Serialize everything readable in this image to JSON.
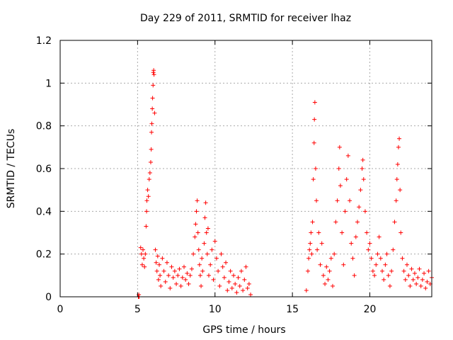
{
  "chart_data": {
    "type": "scatter",
    "title": "Day 229 of 2011, SRMTID for receiver lhaz",
    "xlabel": "GPS time / hours",
    "ylabel": "SRMTID / TECUs",
    "xlim": [
      0,
      24
    ],
    "ylim": [
      0,
      1.2
    ],
    "x_ticks": [
      0,
      5,
      10,
      15,
      20
    ],
    "x_tick_labels": [
      "0",
      "5",
      "10",
      "15",
      "20"
    ],
    "y_ticks": [
      0,
      0.2,
      0.4,
      0.6,
      0.8,
      1.0,
      1.2
    ],
    "y_tick_labels": [
      "0",
      "0.2",
      "0.4",
      "0.6",
      "0.8",
      "1",
      "1.2"
    ],
    "grid": true,
    "marker": "+",
    "series": [
      {
        "name": "SRMTID",
        "color": "#ff0000",
        "points": [
          [
            5.05,
            0.0
          ],
          [
            5.08,
            0.01
          ],
          [
            5.1,
            0.0
          ],
          [
            5.2,
            0.23
          ],
          [
            5.25,
            0.2
          ],
          [
            5.3,
            0.15
          ],
          [
            5.35,
            0.22
          ],
          [
            5.4,
            0.18
          ],
          [
            5.45,
            0.14
          ],
          [
            5.5,
            0.2
          ],
          [
            5.55,
            0.33
          ],
          [
            5.58,
            0.4
          ],
          [
            5.6,
            0.45
          ],
          [
            5.65,
            0.5
          ],
          [
            5.7,
            0.47
          ],
          [
            5.75,
            0.55
          ],
          [
            5.8,
            0.58
          ],
          [
            5.85,
            0.63
          ],
          [
            5.88,
            0.69
          ],
          [
            5.9,
            0.77
          ],
          [
            5.92,
            0.81
          ],
          [
            5.95,
            0.88
          ],
          [
            5.97,
            0.93
          ],
          [
            6.0,
            0.99
          ],
          [
            6.02,
            1.05
          ],
          [
            6.04,
            1.06
          ],
          [
            6.06,
            1.04
          ],
          [
            6.1,
            0.86
          ],
          [
            6.15,
            0.22
          ],
          [
            6.2,
            0.16
          ],
          [
            6.25,
            0.12
          ],
          [
            6.3,
            0.19
          ],
          [
            6.35,
            0.08
          ],
          [
            6.4,
            0.15
          ],
          [
            6.45,
            0.1
          ],
          [
            6.5,
            0.05
          ],
          [
            6.6,
            0.18
          ],
          [
            6.7,
            0.12
          ],
          [
            6.8,
            0.07
          ],
          [
            6.9,
            0.16
          ],
          [
            7.0,
            0.1
          ],
          [
            7.1,
            0.04
          ],
          [
            7.2,
            0.14
          ],
          [
            7.3,
            0.09
          ],
          [
            7.4,
            0.12
          ],
          [
            7.5,
            0.06
          ],
          [
            7.6,
            0.1
          ],
          [
            7.7,
            0.13
          ],
          [
            7.8,
            0.05
          ],
          [
            7.9,
            0.09
          ],
          [
            8.0,
            0.14
          ],
          [
            8.1,
            0.08
          ],
          [
            8.2,
            0.11
          ],
          [
            8.3,
            0.06
          ],
          [
            8.4,
            0.1
          ],
          [
            8.5,
            0.13
          ],
          [
            8.6,
            0.2
          ],
          [
            8.7,
            0.28
          ],
          [
            8.75,
            0.34
          ],
          [
            8.8,
            0.4
          ],
          [
            8.85,
            0.45
          ],
          [
            8.9,
            0.3
          ],
          [
            8.95,
            0.22
          ],
          [
            9.0,
            0.15
          ],
          [
            9.05,
            0.1
          ],
          [
            9.1,
            0.05
          ],
          [
            9.15,
            0.18
          ],
          [
            9.2,
            0.12
          ],
          [
            9.3,
            0.25
          ],
          [
            9.35,
            0.37
          ],
          [
            9.4,
            0.44
          ],
          [
            9.45,
            0.3
          ],
          [
            9.5,
            0.2
          ],
          [
            9.55,
            0.32
          ],
          [
            9.6,
            0.1
          ],
          [
            9.7,
            0.15
          ],
          [
            9.8,
            0.22
          ],
          [
            9.9,
            0.08
          ],
          [
            10.0,
            0.26
          ],
          [
            10.1,
            0.18
          ],
          [
            10.2,
            0.12
          ],
          [
            10.3,
            0.05
          ],
          [
            10.4,
            0.2
          ],
          [
            10.5,
            0.14
          ],
          [
            10.6,
            0.09
          ],
          [
            10.7,
            0.16
          ],
          [
            10.8,
            0.03
          ],
          [
            10.9,
            0.07
          ],
          [
            11.0,
            0.12
          ],
          [
            11.1,
            0.04
          ],
          [
            11.2,
            0.1
          ],
          [
            11.3,
            0.06
          ],
          [
            11.4,
            0.02
          ],
          [
            11.5,
            0.09
          ],
          [
            11.6,
            0.05
          ],
          [
            11.7,
            0.12
          ],
          [
            11.8,
            0.03
          ],
          [
            11.9,
            0.08
          ],
          [
            12.0,
            0.14
          ],
          [
            12.1,
            0.04
          ],
          [
            12.2,
            0.06
          ],
          [
            12.3,
            0.01
          ],
          [
            15.9,
            0.03
          ],
          [
            16.0,
            0.12
          ],
          [
            16.05,
            0.18
          ],
          [
            16.1,
            0.22
          ],
          [
            16.15,
            0.25
          ],
          [
            16.2,
            0.3
          ],
          [
            16.25,
            0.2
          ],
          [
            16.3,
            0.35
          ],
          [
            16.35,
            0.55
          ],
          [
            16.4,
            0.72
          ],
          [
            16.42,
            0.83
          ],
          [
            16.45,
            0.91
          ],
          [
            16.5,
            0.6
          ],
          [
            16.55,
            0.45
          ],
          [
            16.6,
            0.22
          ],
          [
            16.7,
            0.3
          ],
          [
            16.8,
            0.15
          ],
          [
            16.9,
            0.25
          ],
          [
            17.0,
            0.1
          ],
          [
            17.1,
            0.06
          ],
          [
            17.2,
            0.14
          ],
          [
            17.3,
            0.08
          ],
          [
            17.4,
            0.12
          ],
          [
            17.5,
            0.18
          ],
          [
            17.6,
            0.05
          ],
          [
            17.7,
            0.2
          ],
          [
            17.8,
            0.35
          ],
          [
            17.9,
            0.45
          ],
          [
            18.0,
            0.6
          ],
          [
            18.05,
            0.7
          ],
          [
            18.1,
            0.52
          ],
          [
            18.2,
            0.3
          ],
          [
            18.3,
            0.15
          ],
          [
            18.4,
            0.4
          ],
          [
            18.5,
            0.55
          ],
          [
            18.6,
            0.66
          ],
          [
            18.7,
            0.45
          ],
          [
            18.8,
            0.25
          ],
          [
            18.9,
            0.18
          ],
          [
            19.0,
            0.1
          ],
          [
            19.1,
            0.28
          ],
          [
            19.2,
            0.35
          ],
          [
            19.3,
            0.42
          ],
          [
            19.4,
            0.5
          ],
          [
            19.5,
            0.6
          ],
          [
            19.55,
            0.64
          ],
          [
            19.6,
            0.55
          ],
          [
            19.7,
            0.4
          ],
          [
            19.8,
            0.3
          ],
          [
            19.9,
            0.22
          ],
          [
            20.0,
            0.25
          ],
          [
            20.1,
            0.18
          ],
          [
            20.2,
            0.12
          ],
          [
            20.3,
            0.1
          ],
          [
            20.4,
            0.15
          ],
          [
            20.5,
            0.2
          ],
          [
            20.6,
            0.28
          ],
          [
            20.7,
            0.18
          ],
          [
            20.8,
            0.12
          ],
          [
            20.9,
            0.08
          ],
          [
            21.0,
            0.15
          ],
          [
            21.1,
            0.2
          ],
          [
            21.2,
            0.1
          ],
          [
            21.3,
            0.05
          ],
          [
            21.4,
            0.12
          ],
          [
            21.5,
            0.22
          ],
          [
            21.6,
            0.35
          ],
          [
            21.7,
            0.45
          ],
          [
            21.75,
            0.55
          ],
          [
            21.8,
            0.62
          ],
          [
            21.85,
            0.7
          ],
          [
            21.9,
            0.74
          ],
          [
            21.95,
            0.5
          ],
          [
            22.0,
            0.3
          ],
          [
            22.1,
            0.18
          ],
          [
            22.2,
            0.12
          ],
          [
            22.3,
            0.08
          ],
          [
            22.4,
            0.15
          ],
          [
            22.5,
            0.1
          ],
          [
            22.6,
            0.05
          ],
          [
            22.7,
            0.13
          ],
          [
            22.8,
            0.08
          ],
          [
            22.9,
            0.11
          ],
          [
            23.0,
            0.06
          ],
          [
            23.1,
            0.09
          ],
          [
            23.2,
            0.13
          ],
          [
            23.3,
            0.05
          ],
          [
            23.4,
            0.08
          ],
          [
            23.5,
            0.11
          ],
          [
            23.6,
            0.04
          ],
          [
            23.7,
            0.07
          ],
          [
            23.8,
            0.12
          ],
          [
            23.9,
            0.06
          ],
          [
            24.0,
            0.09
          ]
        ]
      }
    ]
  }
}
